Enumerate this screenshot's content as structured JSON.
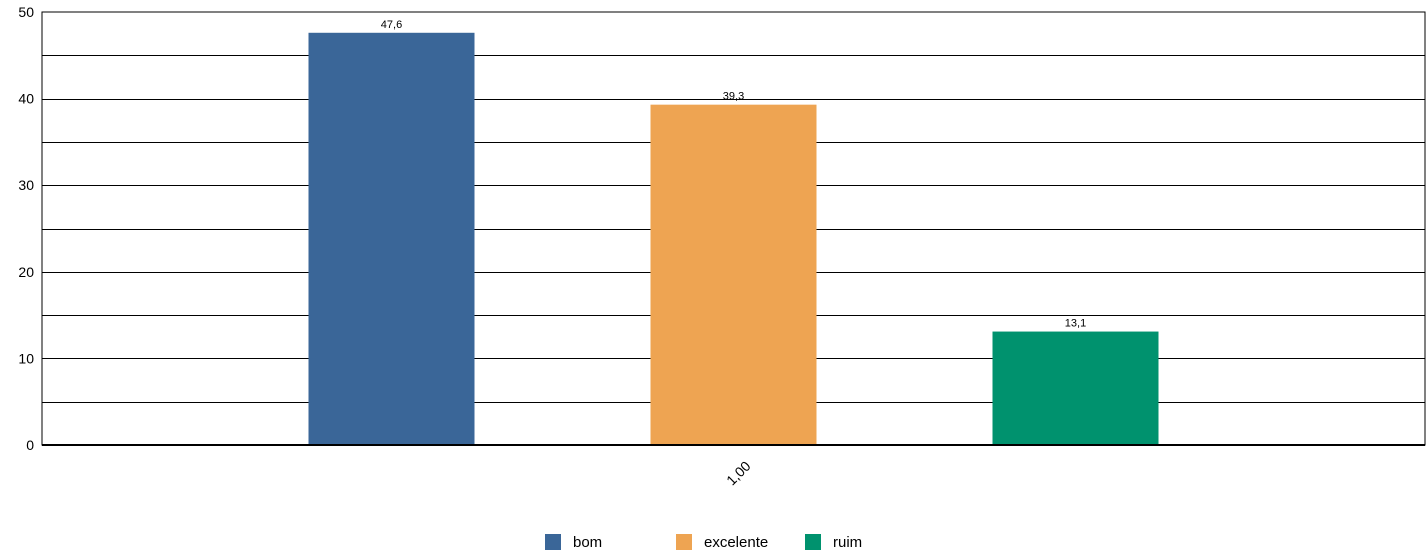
{
  "chart_data": {
    "type": "bar",
    "title": "",
    "xlabel": "",
    "ylabel": "",
    "categories": [
      "1,00"
    ],
    "ylim": [
      0,
      50
    ],
    "yticks": [
      "0",
      "10",
      "20",
      "30",
      "40",
      "50"
    ],
    "grid": true,
    "legend_position": "bottom",
    "series": [
      {
        "name": "bom",
        "values": [
          47.6
        ],
        "label": "47,6",
        "color": "#3a6698"
      },
      {
        "name": "excelente",
        "values": [
          39.3
        ],
        "label": "39,3",
        "color": "#eea452"
      },
      {
        "name": "ruim",
        "values": [
          13.1
        ],
        "label": "13,1",
        "color": "#00926e"
      }
    ]
  }
}
